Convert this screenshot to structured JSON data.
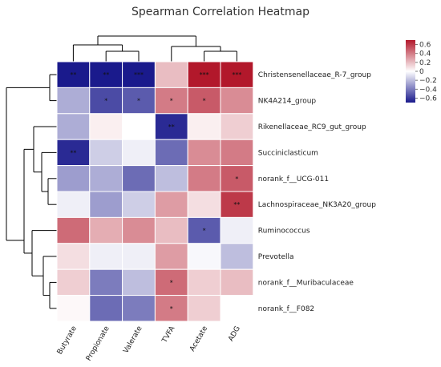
{
  "chart_data": {
    "type": "heatmap",
    "title": "Spearman Correlation Heatmap",
    "columns": [
      "Butyrate",
      "Propionate",
      "Valerate",
      "TVFA",
      "Acetate",
      "ADG"
    ],
    "rows": [
      "Christensenellaceae_R-7_group",
      "NK4A214_group",
      "Rikenellaceae_RC9_gut_group",
      "Succiniclasticum",
      "norank_f__UCG-011",
      "Lachnospiraceae_NK3A20_group",
      "Ruminococcus",
      "Prevotella",
      "norank_f__Muribaculaceae",
      "norank_f__F082"
    ],
    "values": [
      [
        -0.7,
        -0.7,
        -0.7,
        0.2,
        0.7,
        0.7
      ],
      [
        -0.25,
        -0.55,
        -0.5,
        0.4,
        0.5,
        0.35
      ],
      [
        -0.25,
        0.05,
        0.0,
        -0.65,
        0.05,
        0.15
      ],
      [
        -0.65,
        -0.15,
        -0.05,
        -0.45,
        0.35,
        0.4
      ],
      [
        -0.3,
        -0.25,
        -0.45,
        -0.2,
        0.4,
        0.5
      ],
      [
        -0.05,
        -0.3,
        -0.15,
        0.3,
        0.1,
        0.6
      ],
      [
        0.45,
        0.25,
        0.35,
        0.2,
        -0.5,
        -0.05
      ],
      [
        0.1,
        -0.05,
        -0.05,
        0.3,
        -0.02,
        -0.2
      ],
      [
        0.15,
        -0.4,
        -0.2,
        0.45,
        0.15,
        0.2
      ],
      [
        0.02,
        -0.45,
        -0.4,
        0.4,
        0.15,
        0.0
      ]
    ],
    "significance": [
      [
        "**",
        "**",
        "***",
        "",
        "***",
        "***"
      ],
      [
        "",
        "*",
        "*",
        "*",
        "*",
        ""
      ],
      [
        "",
        "",
        "",
        "**",
        "",
        ""
      ],
      [
        "**",
        "",
        "",
        "",
        "",
        ""
      ],
      [
        "",
        "",
        "",
        "",
        "",
        "*"
      ],
      [
        "",
        "",
        "",
        "",
        "",
        "**"
      ],
      [
        "",
        "",
        "",
        "",
        "*",
        ""
      ],
      [
        "",
        "",
        "",
        "",
        "",
        ""
      ],
      [
        "",
        "",
        "",
        "*",
        "",
        ""
      ],
      [
        "",
        "",
        "",
        "*",
        "",
        ""
      ]
    ],
    "colorbar": {
      "min": -0.7,
      "max": 0.7,
      "ticks": [
        0.6,
        0.4,
        0.2,
        0,
        -0.2,
        -0.4,
        -0.6
      ],
      "tick_labels": [
        "0.6",
        "0.4",
        "0.2",
        "0",
        "−0.2",
        "−0.4",
        "−0.6"
      ],
      "low_color": "#1a1a8c",
      "mid_color": "#ffffff",
      "high_color": "#b2182b"
    },
    "row_dendrogram": true,
    "col_dendrogram": true,
    "grid": true,
    "legend_placement": "top-right"
  }
}
